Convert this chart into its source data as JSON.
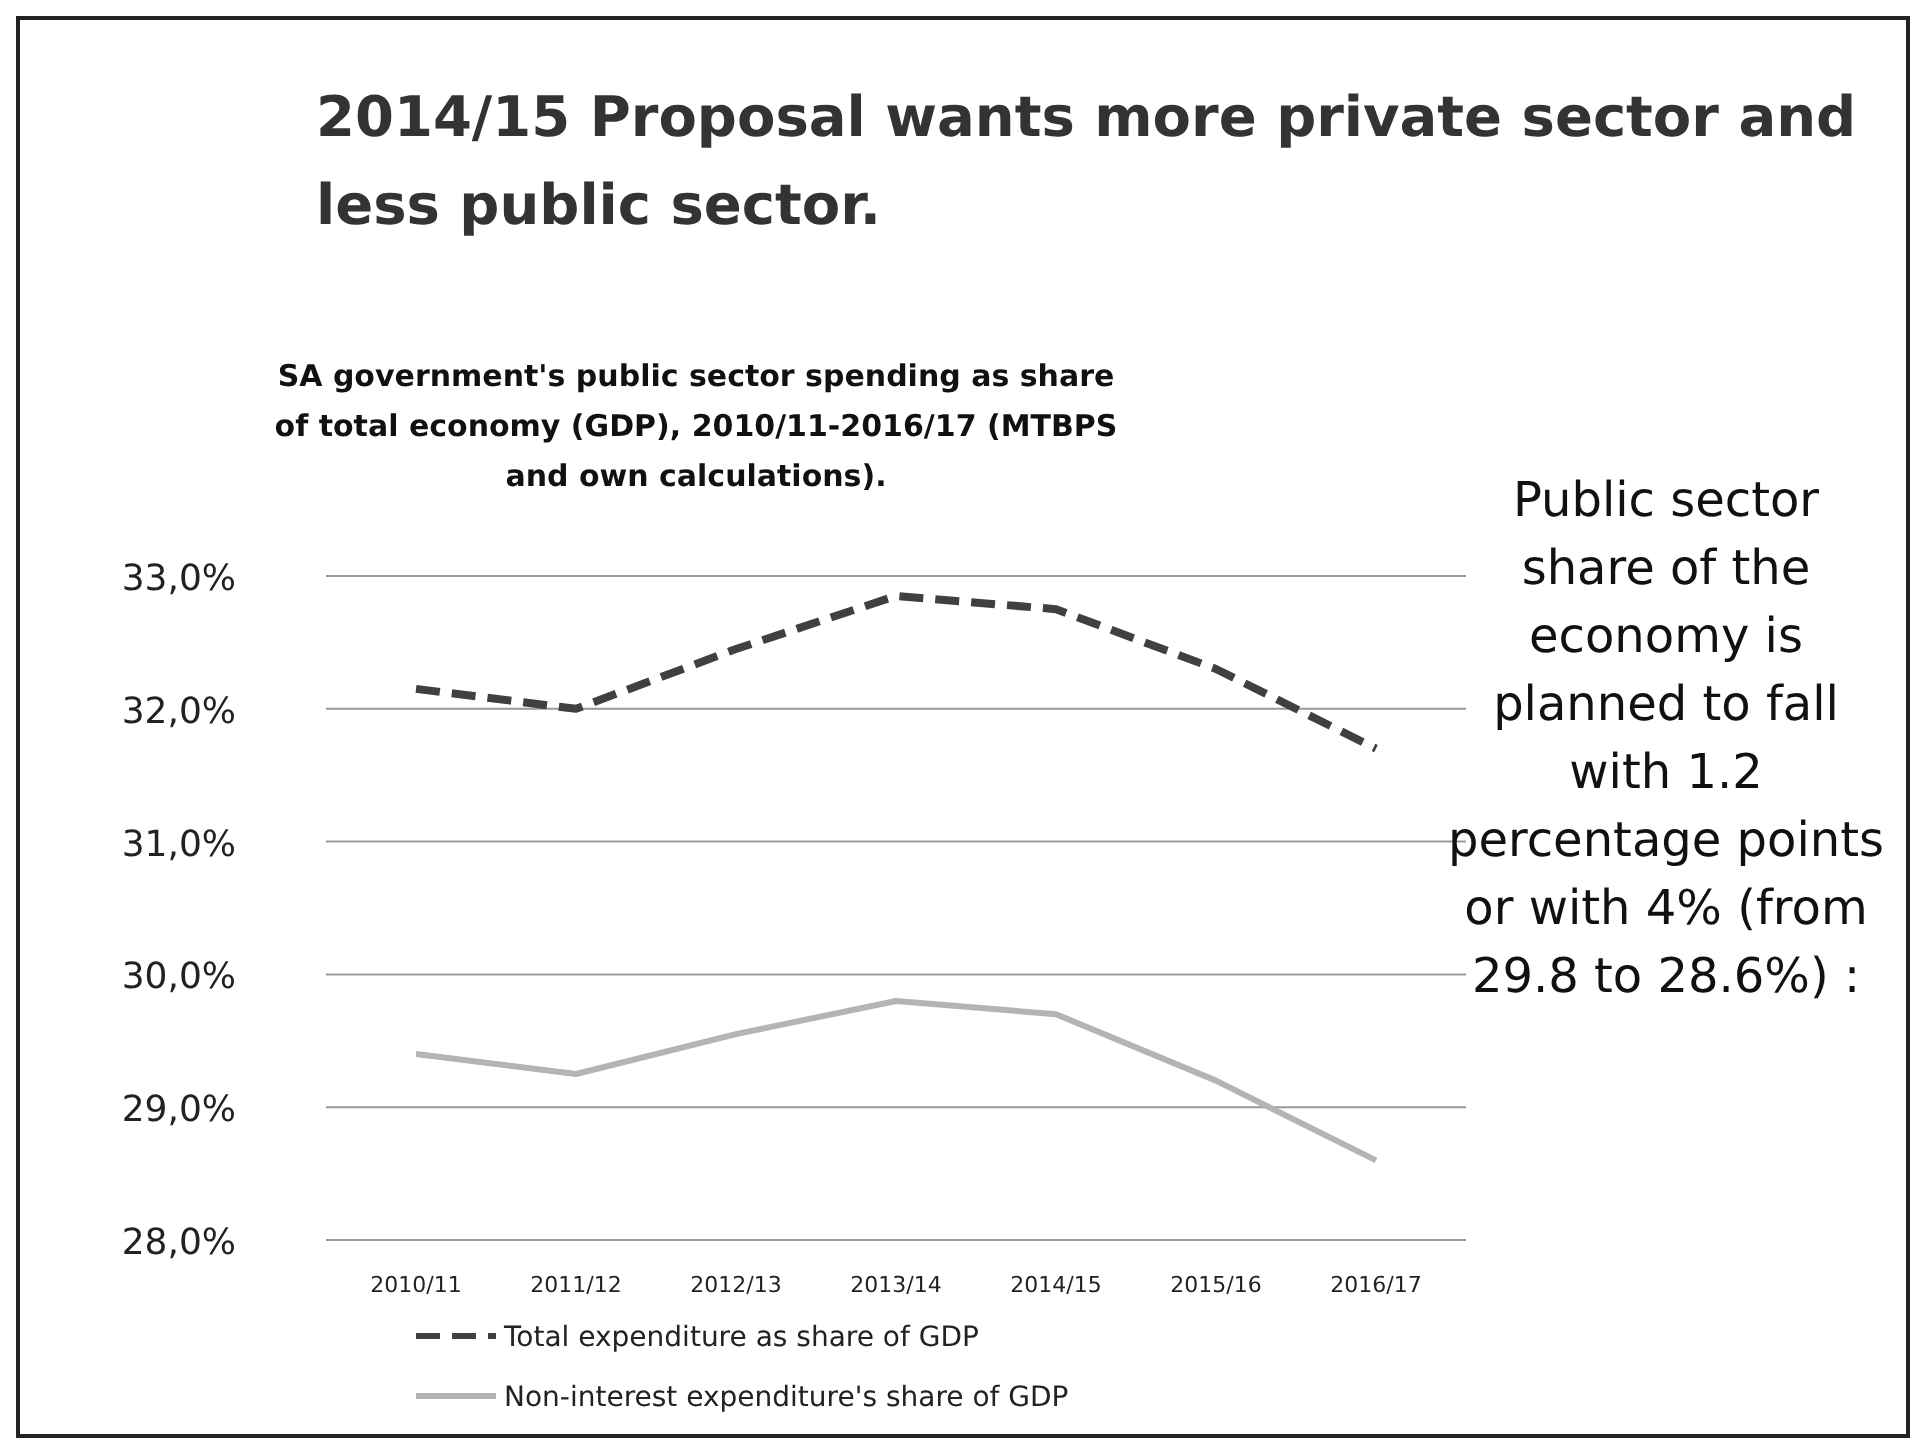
{
  "chart_data": {
    "type": "line",
    "title": "2014/15 Proposal wants more private sector and less public sector.",
    "subtitle": "SA government's public sector spending as share of total economy (GDP), 2010/11-2016/17 (MTBPS and own calculations).",
    "categories": [
      "2010/11",
      "2011/12",
      "2012/13",
      "2013/14",
      "2014/15",
      "2015/16",
      "2016/17"
    ],
    "series": [
      {
        "name": "Total expenditure as share of GDP",
        "color": "#404040",
        "line_style": "dashed",
        "values": [
          32.15,
          32.0,
          32.45,
          32.85,
          32.75,
          32.3,
          31.7
        ]
      },
      {
        "name": "Non-interest expenditure's share of GDP",
        "color": "#b4b4b4",
        "line_style": "solid",
        "values": [
          29.4,
          29.25,
          29.55,
          29.8,
          29.7,
          29.2,
          28.6
        ]
      }
    ],
    "ylim": [
      28,
      33
    ],
    "yticks": [
      {
        "value": 28,
        "label": "28,0%"
      },
      {
        "value": 29,
        "label": "29,0%"
      },
      {
        "value": 30,
        "label": "30,0%"
      },
      {
        "value": 31,
        "label": "31,0%"
      },
      {
        "value": 32,
        "label": "32,0%"
      },
      {
        "value": 33,
        "label": "33,0%"
      }
    ],
    "grid": "y",
    "legend": "bottom",
    "marker": "none",
    "annotations": [
      "Public sector share of the economy is planned to fall with 1.2 percentage points or with 4% (from 29.8 to 28.6%) :"
    ]
  }
}
